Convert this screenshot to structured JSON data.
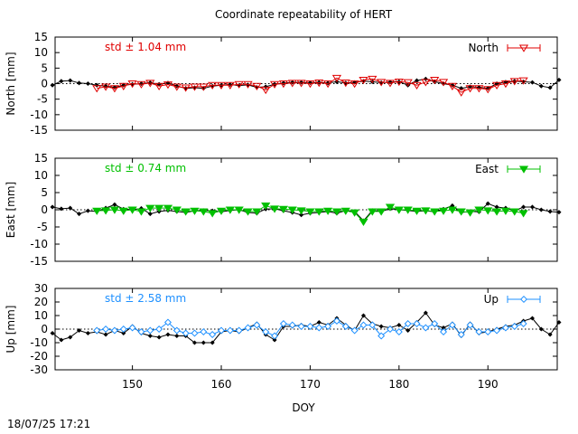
{
  "title": "Coordinate repeatability of HERT",
  "footer_timestamp": "18/07/25 17:21",
  "xlabel": "DOY",
  "colors": {
    "north": "#e00000",
    "east": "#00c000",
    "up": "#1e90ff",
    "black": "#000000"
  },
  "chart_data": [
    {
      "type": "line",
      "panel": "north",
      "ylabel": "North [mm]",
      "legend": "North",
      "legend_placement": "top-right",
      "annotation": "std ± 1.04 mm",
      "marker": "triangle-down-open",
      "xlim": [
        141.3,
        197.8
      ],
      "ylim": [
        -15,
        15
      ],
      "yticks": [
        -15,
        -10,
        -5,
        0,
        5,
        10,
        15
      ],
      "xticks": [
        150,
        160,
        170,
        180,
        190
      ],
      "zero_line": true,
      "series": [
        {
          "role": "reference",
          "x": [
            141,
            142,
            143,
            144,
            145,
            146,
            147,
            148,
            149,
            150,
            151,
            152,
            153,
            154,
            155,
            156,
            157,
            158,
            159,
            160,
            161,
            162,
            163,
            164,
            165,
            166,
            167,
            168,
            169,
            170,
            171,
            172,
            173,
            174,
            175,
            176,
            177,
            178,
            179,
            180,
            181,
            182,
            183,
            184,
            185,
            186,
            187,
            188,
            189,
            190,
            191,
            192,
            193,
            194,
            195,
            196,
            197,
            198
          ],
          "y": [
            -0.5,
            0.8,
            1.0,
            0.2,
            0.0,
            -0.5,
            -0.8,
            -1.2,
            -0.5,
            -0.2,
            0.0,
            0.3,
            -0.2,
            0.2,
            -0.8,
            -1.5,
            -1.3,
            -1.5,
            -0.8,
            -0.5,
            -0.3,
            -0.6,
            -0.4,
            -1.2,
            -1.0,
            -0.2,
            0.2,
            0.4,
            0.4,
            0.3,
            0.4,
            0.2,
            0.6,
            0.2,
            0.4,
            0.8,
            0.6,
            0.3,
            0.5,
            0.6,
            -0.5,
            1.0,
            1.5,
            0.6,
            0.0,
            -0.5,
            -1.5,
            -1.0,
            -1.2,
            -1.5,
            0.0,
            0.5,
            0.8,
            0.6,
            0.4,
            -0.8,
            -1.3,
            1.2
          ]
        },
        {
          "name": "North",
          "x": [
            146,
            147,
            148,
            149,
            150,
            151,
            152,
            153,
            154,
            155,
            156,
            157,
            158,
            159,
            160,
            161,
            162,
            163,
            164,
            165,
            166,
            167,
            168,
            169,
            170,
            171,
            172,
            173,
            174,
            175,
            176,
            177,
            178,
            179,
            180,
            181,
            182,
            183,
            184,
            185,
            186,
            187,
            188,
            189,
            190,
            191,
            192,
            193,
            194
          ],
          "y": [
            -1.5,
            -1.0,
            -1.5,
            -0.8,
            0.0,
            -0.2,
            0.2,
            -0.8,
            -0.3,
            -1.0,
            -1.3,
            -1.0,
            -1.0,
            -0.5,
            -0.5,
            -0.5,
            -0.2,
            -0.2,
            -0.8,
            -2.0,
            -0.2,
            0.0,
            0.2,
            0.2,
            0.0,
            0.3,
            0.0,
            1.8,
            0.3,
            0.0,
            1.2,
            1.5,
            0.5,
            0.2,
            0.6,
            0.4,
            -0.5,
            0.5,
            1.2,
            0.5,
            -0.8,
            -2.8,
            -1.5,
            -1.5,
            -1.8,
            -0.5,
            0.0,
            0.8,
            1.0
          ]
        }
      ]
    },
    {
      "type": "line",
      "panel": "east",
      "ylabel": "East [mm]",
      "legend": "East",
      "legend_placement": "top-right",
      "annotation": "std ± 0.74 mm",
      "marker": "triangle-down-filled",
      "xlim": [
        141.3,
        197.8
      ],
      "ylim": [
        -15,
        15
      ],
      "yticks": [
        -15,
        -10,
        -5,
        0,
        5,
        10,
        15
      ],
      "xticks": [
        150,
        160,
        170,
        180,
        190
      ],
      "zero_line": true,
      "series": [
        {
          "role": "reference",
          "x": [
            141,
            142,
            143,
            144,
            145,
            146,
            147,
            148,
            149,
            150,
            151,
            152,
            153,
            154,
            155,
            156,
            157,
            158,
            159,
            160,
            161,
            162,
            163,
            164,
            165,
            166,
            167,
            168,
            169,
            170,
            171,
            172,
            173,
            174,
            175,
            176,
            177,
            178,
            179,
            180,
            181,
            182,
            183,
            184,
            185,
            186,
            187,
            188,
            189,
            190,
            191,
            192,
            193,
            194,
            195,
            196,
            197,
            198
          ],
          "y": [
            0.8,
            0.3,
            0.5,
            -1.2,
            -0.3,
            -0.5,
            0.5,
            1.5,
            0.2,
            0.0,
            0.4,
            -1.2,
            -0.5,
            -0.2,
            -0.5,
            -0.8,
            -0.3,
            -0.2,
            -0.3,
            -0.6,
            -0.2,
            0.0,
            -0.8,
            -1.0,
            0.2,
            0.3,
            -0.3,
            -0.8,
            -1.5,
            -1.0,
            -0.8,
            -0.5,
            -1.0,
            -0.2,
            -0.5,
            -3.2,
            -0.2,
            -0.5,
            0.3,
            0.0,
            -0.2,
            -0.5,
            -0.3,
            -0.6,
            0.2,
            1.2,
            -0.8,
            -0.5,
            -0.6,
            1.8,
            0.8,
            0.5,
            -0.3,
            0.8,
            0.8,
            0.0,
            -0.5,
            -0.7
          ]
        },
        {
          "name": "East",
          "x": [
            146,
            147,
            148,
            149,
            150,
            151,
            152,
            153,
            154,
            155,
            156,
            157,
            158,
            159,
            160,
            161,
            162,
            163,
            164,
            165,
            166,
            167,
            168,
            169,
            170,
            171,
            172,
            173,
            174,
            175,
            176,
            177,
            178,
            179,
            180,
            181,
            182,
            183,
            184,
            185,
            186,
            187,
            188,
            189,
            190,
            191,
            192,
            193,
            194
          ],
          "y": [
            -0.3,
            -0.2,
            0.0,
            -0.3,
            0.0,
            -0.5,
            0.5,
            0.5,
            0.5,
            0.0,
            -0.5,
            -0.3,
            -0.5,
            -1.0,
            -0.3,
            0.0,
            0.0,
            -0.5,
            -0.5,
            1.2,
            0.3,
            0.2,
            0.0,
            -0.2,
            -0.5,
            -0.5,
            -0.3,
            -0.5,
            -0.3,
            -0.8,
            -3.5,
            -0.5,
            -0.5,
            0.8,
            0.0,
            0.0,
            -0.3,
            -0.2,
            -0.5,
            -0.3,
            0.0,
            -0.5,
            -0.8,
            0.0,
            -0.2,
            -0.5,
            -0.3,
            -0.5,
            -1.0
          ]
        }
      ]
    },
    {
      "type": "line",
      "panel": "up",
      "ylabel": "Up [mm]",
      "legend": "Up",
      "legend_placement": "top-right",
      "annotation": "std ± 2.58 mm",
      "marker": "diamond-open",
      "xlim": [
        141.3,
        197.8
      ],
      "ylim": [
        -30,
        30
      ],
      "yticks": [
        -30,
        -20,
        -10,
        0,
        10,
        20,
        30
      ],
      "xticks": [
        150,
        160,
        170,
        180,
        190
      ],
      "zero_line": true,
      "series": [
        {
          "role": "reference",
          "x": [
            141,
            142,
            143,
            144,
            145,
            146,
            147,
            148,
            149,
            150,
            151,
            152,
            153,
            154,
            155,
            156,
            157,
            158,
            159,
            160,
            161,
            162,
            163,
            164,
            165,
            166,
            167,
            168,
            169,
            170,
            171,
            172,
            173,
            174,
            175,
            176,
            177,
            178,
            179,
            180,
            181,
            182,
            183,
            184,
            185,
            186,
            187,
            188,
            189,
            190,
            191,
            192,
            193,
            194,
            195,
            196,
            197,
            198
          ],
          "y": [
            -3,
            -8,
            -6,
            -1,
            -3,
            -2,
            -4,
            -1,
            -3,
            2,
            -3,
            -5,
            -6,
            -4,
            -5,
            -5,
            -10,
            -10,
            -10,
            -2,
            -1,
            -2,
            1,
            4,
            -4,
            -8,
            2,
            2,
            3,
            2,
            5,
            3,
            8,
            3,
            -1,
            10,
            4,
            2,
            1,
            3,
            -1,
            5,
            12,
            3,
            1,
            4,
            -5,
            4,
            -3,
            -2,
            0,
            2,
            3,
            6,
            8,
            0,
            -4,
            5
          ]
        },
        {
          "name": "Up",
          "x": [
            146,
            147,
            148,
            149,
            150,
            151,
            152,
            153,
            154,
            155,
            156,
            157,
            158,
            159,
            160,
            161,
            162,
            163,
            164,
            165,
            166,
            167,
            168,
            169,
            170,
            171,
            172,
            173,
            174,
            175,
            176,
            177,
            178,
            179,
            180,
            181,
            182,
            183,
            184,
            185,
            186,
            187,
            188,
            189,
            190,
            191,
            192,
            193,
            194
          ],
          "y": [
            -1,
            0,
            -1,
            0,
            1,
            -2,
            -1,
            0,
            5,
            -1,
            -3,
            -3,
            -2,
            -4,
            -1,
            -1,
            -1,
            1,
            3,
            -2,
            -5,
            4,
            3,
            2,
            2,
            1,
            2,
            6,
            2,
            -1,
            3,
            3,
            -5,
            0,
            -2,
            4,
            4,
            1,
            4,
            -2,
            3,
            -4,
            3,
            -2,
            -2,
            -1,
            1,
            2,
            4
          ]
        }
      ]
    }
  ]
}
